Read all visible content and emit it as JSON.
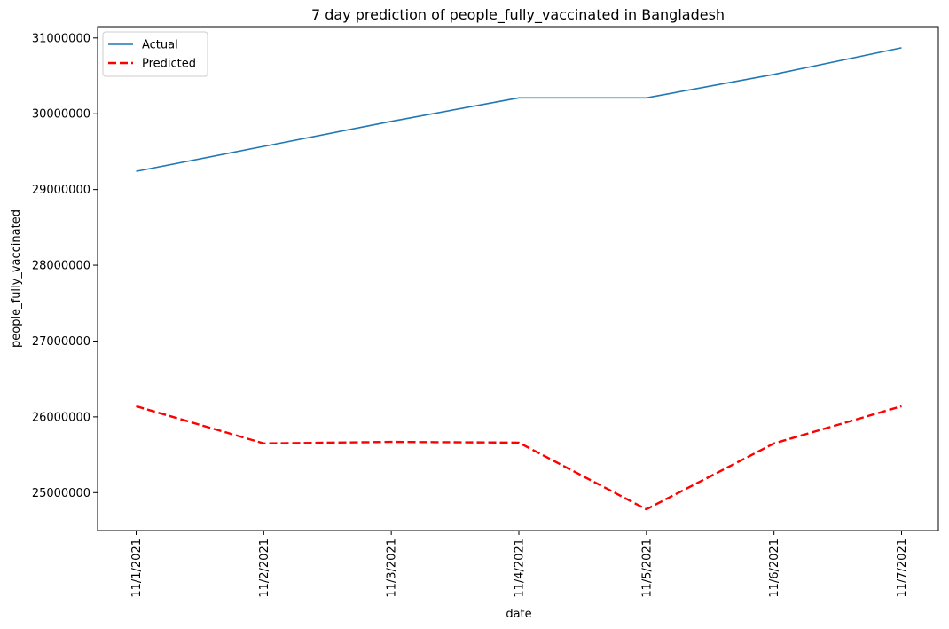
{
  "chart_data": {
    "type": "line",
    "title": "7 day prediction of people_fully_vaccinated in Bangladesh",
    "xlabel": "date",
    "ylabel": "people_fully_vaccinated",
    "categories": [
      "11/1/2021",
      "11/2/2021",
      "11/3/2021",
      "11/4/2021",
      "11/5/2021",
      "11/6/2021",
      "11/7/2021"
    ],
    "y_ticks": [
      25000000,
      26000000,
      27000000,
      28000000,
      29000000,
      30000000,
      31000000
    ],
    "ylim": [
      24500000,
      31150000
    ],
    "grid": false,
    "legend_position": "top-left",
    "series": [
      {
        "name": "Actual",
        "color": "#1f77b4",
        "style": "solid",
        "values": [
          29240000,
          29570000,
          29900000,
          30210000,
          30210000,
          30520000,
          30870000
        ]
      },
      {
        "name": "Predicted",
        "color": "#ff0000",
        "style": "dashed",
        "values": [
          26140000,
          25650000,
          25670000,
          25660000,
          24780000,
          25650000,
          26140000
        ]
      }
    ]
  }
}
